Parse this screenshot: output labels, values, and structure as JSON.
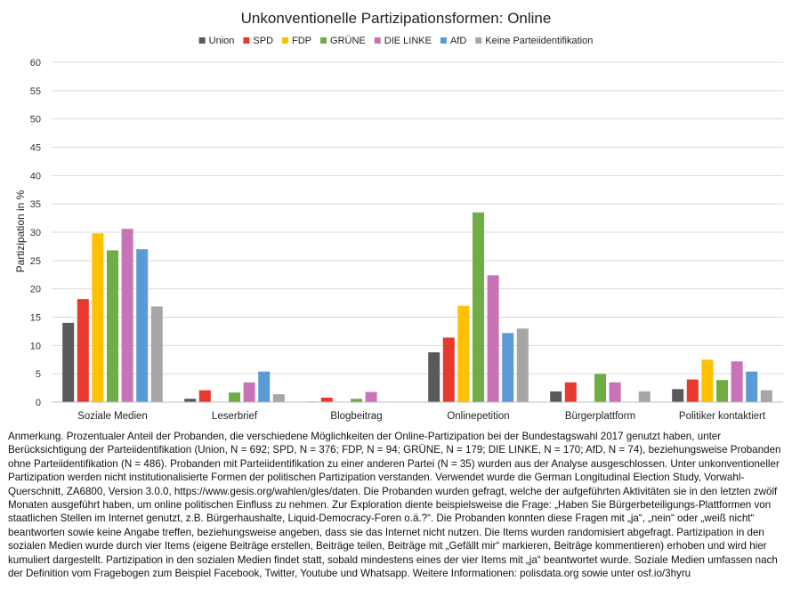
{
  "chart_data": {
    "type": "bar",
    "title": "Unkonventionelle Partizipationsformen: Online",
    "ylabel": "Partizipation in %",
    "xlabel": "",
    "ylim": [
      0,
      60
    ],
    "yticks": [
      0,
      5,
      10,
      15,
      20,
      25,
      30,
      35,
      40,
      45,
      50,
      55,
      60
    ],
    "grid": true,
    "legend_position": "top",
    "categories": [
      "Soziale Medien",
      "Leserbrief",
      "Blogbeitrag",
      "Onlinepetition",
      "Bürgerplattform",
      "Politiker kontaktiert"
    ],
    "series": [
      {
        "name": "Union",
        "color": "#595959",
        "values": [
          14.0,
          0.6,
          0.1,
          8.8,
          1.9,
          2.3
        ]
      },
      {
        "name": "SPD",
        "color": "#e8392c",
        "values": [
          18.2,
          2.1,
          0.8,
          11.4,
          3.5,
          4.0
        ]
      },
      {
        "name": "FDP",
        "color": "#ffc000",
        "values": [
          29.8,
          0.0,
          0.0,
          17.0,
          0.0,
          7.5
        ]
      },
      {
        "name": "GRÜNE",
        "color": "#70ad47",
        "values": [
          26.8,
          1.7,
          0.6,
          33.5,
          5.0,
          3.9
        ]
      },
      {
        "name": "DIE LINKE",
        "color": "#c872b8",
        "values": [
          30.6,
          3.5,
          1.8,
          22.4,
          3.5,
          7.2
        ]
      },
      {
        "name": "AfD",
        "color": "#5b9bd5",
        "values": [
          27.0,
          5.4,
          0.0,
          12.2,
          0.0,
          5.4
        ]
      },
      {
        "name": "Keine Parteiidentifikation",
        "color": "#a6a6a6",
        "values": [
          16.9,
          1.4,
          0.0,
          13.0,
          1.9,
          2.1
        ]
      }
    ]
  },
  "note": "Anmerkung. Prozentualer Anteil der Probanden, die verschiedene Möglichkeiten der Online-Partizipation bei der Bundestagswahl 2017 genutzt haben, unter Berücksichtigung der Parteiidentifikation (Union, N = 692; SPD, N = 376; FDP, N = 94; GRÜNE, N = 179; DIE LINKE, N = 170; AfD, N = 74), beziehungsweise Probanden ohne Parteiidentifikation (N = 486). Probanden mit Parteiidentifikation zu einer anderen Partei (N = 35) wurden aus der Analyse ausgeschlossen. Unter unkonventioneller Partizipation werden nicht institutionalisierte Formen der politischen Partizipation verstanden. Verwendet wurde die German Longitudinal Election Study, Vorwahl-Querschnitt, ZA6800, Version 3.0.0, https://www.gesis.org/wahlen/gles/daten. Die Probanden wurden gefragt, welche der aufgeführten Aktivitäten sie in den letzten zwölf Monaten ausgeführt haben, um online politischen Einfluss zu nehmen. Zur Exploration diente beispielsweise die Frage: „Haben Sie Bürgerbeteiligungs-Plattformen von staatlichen Stellen im Internet genutzt, z.B. Bürgerhaushalte, Liquid-Democracy-Foren o.ä.?“. Die Probanden konnten diese Fragen mit „ja“, „nein“ oder „weiß nicht“ beantworten sowie keine Angabe treffen, beziehungsweise angeben, dass sie das Internet nicht nutzen. Die Items wurden randomisiert abgefragt. Partizipation in den sozialen Medien wurde durch vier Items (eigene Beiträge erstellen, Beiträge teilen, Beiträge mit „Gefällt mir“ markieren, Beiträge kommentieren) erhoben und wird hier kumuliert dargestellt. Partizipation in den sozialen Medien findet statt, sobald mindestens eines der vier Items mit „ja“ beantwortet wurde. Soziale Medien umfassen nach der Definition vom Fragebogen zum Beispiel Facebook, Twitter, Youtube und Whatsapp. Weitere Informationen: polisdata.org sowie unter osf.io/3hyru"
}
